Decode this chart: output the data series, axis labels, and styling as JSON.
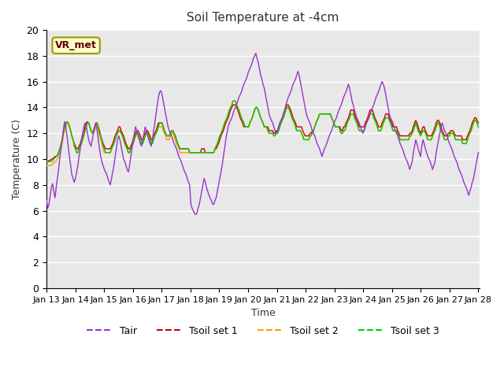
{
  "title": "Soil Temperature at -4cm",
  "xlabel": "Time",
  "ylabel": "Temperature (C)",
  "ylim": [
    0,
    20
  ],
  "xlim": [
    0,
    360
  ],
  "background_color": "#e8e8e8",
  "figure_color": "#ffffff",
  "grid_color": "#ffffff",
  "label_box": "VR_met",
  "legend_labels": [
    "Tair",
    "Tsoil set 1",
    "Tsoil set 2",
    "Tsoil set 3"
  ],
  "line_colors": [
    "#9933cc",
    "#cc0000",
    "#ff9900",
    "#00cc00"
  ],
  "xtick_labels": [
    "Jan 13",
    "Jan 14",
    "Jan 15",
    "Jan 16",
    "Jan 17",
    "Jan 18",
    "Jan 19",
    "Jan 20",
    "Jan 21",
    "Jan 22",
    "Jan 23",
    "Jan 24",
    "Jan 25",
    "Jan 26",
    "Jan 27",
    "Jan 28"
  ],
  "n_points": 360,
  "tair": [
    6.8,
    6.2,
    6.5,
    7.2,
    7.8,
    8.1,
    7.5,
    7.0,
    7.8,
    8.5,
    9.2,
    10.1,
    10.8,
    11.5,
    12.3,
    12.9,
    12.5,
    11.8,
    11.0,
    10.2,
    9.5,
    8.8,
    8.5,
    8.2,
    8.5,
    9.0,
    9.5,
    10.2,
    10.8,
    11.5,
    12.0,
    12.5,
    12.8,
    12.5,
    12.0,
    11.5,
    11.2,
    11.0,
    11.5,
    12.0,
    12.5,
    12.8,
    12.2,
    11.5,
    10.8,
    10.2,
    9.8,
    9.5,
    9.2,
    9.0,
    8.8,
    8.5,
    8.2,
    8.0,
    8.5,
    9.0,
    9.5,
    10.2,
    10.8,
    11.5,
    11.8,
    11.5,
    11.0,
    10.5,
    10.0,
    9.8,
    9.5,
    9.2,
    9.0,
    9.5,
    10.2,
    10.8,
    11.5,
    12.0,
    12.5,
    12.2,
    11.8,
    11.5,
    11.2,
    11.0,
    11.5,
    12.0,
    12.5,
    12.2,
    11.8,
    11.5,
    11.2,
    11.0,
    11.5,
    12.2,
    12.8,
    13.5,
    14.2,
    14.8,
    15.2,
    15.3,
    15.0,
    14.5,
    14.0,
    13.5,
    13.0,
    12.5,
    12.2,
    12.0,
    11.8,
    11.5,
    11.2,
    11.0,
    10.8,
    10.5,
    10.2,
    10.0,
    9.8,
    9.5,
    9.2,
    9.0,
    8.8,
    8.5,
    8.2,
    8.0,
    6.5,
    6.2,
    6.0,
    5.8,
    5.7,
    5.8,
    6.2,
    6.5,
    7.0,
    7.5,
    8.0,
    8.5,
    8.2,
    7.8,
    7.5,
    7.2,
    7.0,
    6.8,
    6.5,
    6.5,
    6.8,
    7.0,
    7.5,
    8.0,
    8.5,
    9.0,
    9.5,
    10.2,
    10.8,
    11.5,
    12.0,
    12.5,
    12.8,
    13.0,
    13.2,
    13.5,
    13.8,
    14.0,
    14.2,
    14.5,
    14.8,
    15.0,
    15.2,
    15.5,
    15.8,
    16.0,
    16.2,
    16.5,
    16.8,
    17.0,
    17.2,
    17.5,
    17.8,
    18.0,
    18.2,
    17.8,
    17.5,
    17.0,
    16.5,
    16.2,
    15.8,
    15.5,
    15.0,
    14.5,
    14.0,
    13.5,
    13.2,
    13.0,
    12.8,
    12.5,
    12.2,
    12.0,
    12.2,
    12.5,
    12.8,
    13.0,
    13.2,
    13.5,
    13.8,
    14.2,
    14.5,
    14.8,
    15.0,
    15.2,
    15.5,
    15.8,
    16.0,
    16.2,
    16.5,
    16.8,
    16.5,
    16.0,
    15.5,
    15.0,
    14.5,
    14.0,
    13.5,
    13.2,
    13.0,
    12.8,
    12.5,
    12.2,
    12.0,
    11.8,
    11.5,
    11.2,
    11.0,
    10.8,
    10.5,
    10.2,
    10.5,
    10.8,
    11.0,
    11.2,
    11.5,
    11.8,
    12.0,
    12.2,
    12.5,
    12.8,
    13.0,
    13.2,
    13.5,
    13.8,
    14.0,
    14.2,
    14.5,
    14.8,
    15.0,
    15.2,
    15.5,
    15.8,
    15.5,
    15.0,
    14.5,
    14.2,
    13.8,
    13.5,
    13.2,
    13.0,
    12.8,
    12.5,
    12.2,
    12.0,
    12.2,
    12.5,
    12.8,
    13.0,
    13.2,
    13.5,
    13.8,
    14.0,
    14.2,
    14.5,
    14.8,
    15.0,
    15.2,
    15.5,
    15.8,
    16.0,
    15.8,
    15.5,
    15.0,
    14.5,
    14.0,
    13.5,
    13.2,
    13.0,
    12.8,
    12.5,
    12.2,
    12.0,
    11.8,
    11.5,
    11.2,
    11.0,
    10.8,
    10.5,
    10.2,
    10.0,
    9.8,
    9.5,
    9.2,
    9.5,
    9.8,
    10.5,
    11.0,
    11.5,
    11.2,
    10.8,
    10.5,
    10.2,
    11.0,
    11.5,
    11.2,
    10.8,
    10.5,
    10.2,
    10.0,
    9.8,
    9.5,
    9.2,
    9.5,
    9.8,
    10.5,
    11.0,
    11.5,
    12.0,
    12.5,
    12.8,
    12.5,
    12.2,
    12.0,
    11.8,
    11.5,
    11.2,
    11.0,
    10.8,
    10.5,
    10.2,
    10.0,
    9.8,
    9.5,
    9.2,
    9.0,
    8.8,
    8.5,
    8.2,
    8.0,
    7.8,
    7.5,
    7.2,
    7.5,
    7.8,
    8.2,
    8.5,
    9.0,
    9.5,
    10.0,
    10.5
  ],
  "tsoil1": [
    9.8,
    9.8,
    9.9,
    9.9,
    10.0,
    10.0,
    10.1,
    10.2,
    10.2,
    10.3,
    10.5,
    10.8,
    11.0,
    11.5,
    12.0,
    12.5,
    12.8,
    12.9,
    12.8,
    12.5,
    12.2,
    11.8,
    11.5,
    11.2,
    11.0,
    10.8,
    10.8,
    11.0,
    11.2,
    11.5,
    11.8,
    12.0,
    12.5,
    12.8,
    12.9,
    12.8,
    12.5,
    12.2,
    12.0,
    12.2,
    12.5,
    12.8,
    12.8,
    12.5,
    12.2,
    11.8,
    11.5,
    11.2,
    11.0,
    10.8,
    10.8,
    10.8,
    10.8,
    10.8,
    11.0,
    11.2,
    11.5,
    11.8,
    12.0,
    12.2,
    12.5,
    12.5,
    12.2,
    12.0,
    11.8,
    11.5,
    11.2,
    11.0,
    10.8,
    10.8,
    11.0,
    11.2,
    11.5,
    11.8,
    12.0,
    12.2,
    12.2,
    12.0,
    11.8,
    11.5,
    11.5,
    11.8,
    12.0,
    12.2,
    12.2,
    12.0,
    11.8,
    11.5,
    11.5,
    11.8,
    12.0,
    12.2,
    12.5,
    12.8,
    12.8,
    12.8,
    12.8,
    12.5,
    12.2,
    12.0,
    11.8,
    11.8,
    11.8,
    12.0,
    12.2,
    12.2,
    12.0,
    11.8,
    11.5,
    11.2,
    11.0,
    10.8,
    10.8,
    10.8,
    10.8,
    10.8,
    10.8,
    10.8,
    10.8,
    10.5,
    10.5,
    10.5,
    10.5,
    10.5,
    10.5,
    10.5,
    10.5,
    10.5,
    10.5,
    10.8,
    10.8,
    10.8,
    10.5,
    10.5,
    10.5,
    10.5,
    10.5,
    10.5,
    10.5,
    10.5,
    10.8,
    10.8,
    11.0,
    11.2,
    11.5,
    11.8,
    12.0,
    12.2,
    12.5,
    12.8,
    13.0,
    13.2,
    13.5,
    13.8,
    14.0,
    14.2,
    14.2,
    14.2,
    14.0,
    13.8,
    13.5,
    13.2,
    13.0,
    12.8,
    12.5,
    12.5,
    12.5,
    12.5,
    12.5,
    12.8,
    13.0,
    13.2,
    13.5,
    13.8,
    14.0,
    14.0,
    13.8,
    13.5,
    13.2,
    13.0,
    12.8,
    12.5,
    12.5,
    12.5,
    12.5,
    12.2,
    12.2,
    12.2,
    12.2,
    12.0,
    12.0,
    12.2,
    12.2,
    12.5,
    12.8,
    13.0,
    13.2,
    13.5,
    13.8,
    14.0,
    14.2,
    14.2,
    14.0,
    13.8,
    13.5,
    13.2,
    13.0,
    12.8,
    12.5,
    12.5,
    12.5,
    12.5,
    12.5,
    12.2,
    12.0,
    11.8,
    11.8,
    11.8,
    11.8,
    12.0,
    12.0,
    12.2,
    12.2,
    12.5,
    12.8,
    13.0,
    13.2,
    13.5,
    13.5,
    13.5,
    13.5,
    13.5,
    13.5,
    13.5,
    13.5,
    13.5,
    13.5,
    13.2,
    13.0,
    12.8,
    12.5,
    12.5,
    12.5,
    12.5,
    12.5,
    12.2,
    12.2,
    12.5,
    12.5,
    12.8,
    13.0,
    13.2,
    13.5,
    13.8,
    13.8,
    13.8,
    13.5,
    13.2,
    13.0,
    12.8,
    12.5,
    12.5,
    12.5,
    12.5,
    12.5,
    12.8,
    13.0,
    13.2,
    13.5,
    13.8,
    13.8,
    13.8,
    13.5,
    13.2,
    13.0,
    12.8,
    12.5,
    12.5,
    12.5,
    12.8,
    13.0,
    13.2,
    13.5,
    13.5,
    13.5,
    13.2,
    13.0,
    12.8,
    12.5,
    12.5,
    12.5,
    12.5,
    12.2,
    12.0,
    11.8,
    11.8,
    11.8,
    11.8,
    11.8,
    11.8,
    11.8,
    11.8,
    12.0,
    12.0,
    12.2,
    12.5,
    12.8,
    13.0,
    12.8,
    12.5,
    12.2,
    12.0,
    12.2,
    12.5,
    12.5,
    12.2,
    12.0,
    11.8,
    11.8,
    11.8,
    11.8,
    12.0,
    12.2,
    12.5,
    12.8,
    13.0,
    13.0,
    12.8,
    12.5,
    12.2,
    12.0,
    11.8,
    11.8,
    11.8,
    12.0,
    12.0,
    12.2,
    12.2,
    12.2,
    12.0,
    11.8,
    11.8,
    11.8,
    11.8,
    11.8,
    11.8,
    11.5,
    11.5,
    11.5,
    11.5,
    11.8,
    12.0,
    12.2,
    12.5,
    12.8,
    13.0,
    13.2,
    13.2,
    13.0,
    12.8
  ],
  "tsoil2": [
    9.5,
    9.5,
    9.5,
    9.5,
    9.5,
    9.6,
    9.7,
    9.8,
    9.9,
    10.0,
    10.2,
    10.5,
    10.8,
    11.2,
    11.8,
    12.2,
    12.5,
    12.8,
    12.8,
    12.5,
    12.2,
    11.8,
    11.5,
    11.0,
    10.8,
    10.5,
    10.5,
    10.8,
    11.0,
    11.2,
    11.5,
    11.8,
    12.2,
    12.5,
    12.8,
    12.8,
    12.5,
    12.2,
    12.0,
    12.0,
    12.2,
    12.5,
    12.5,
    12.2,
    11.8,
    11.5,
    11.2,
    10.8,
    10.5,
    10.5,
    10.5,
    10.5,
    10.5,
    10.5,
    10.8,
    11.0,
    11.2,
    11.5,
    11.8,
    12.0,
    12.2,
    12.2,
    12.0,
    11.8,
    11.5,
    11.2,
    11.0,
    10.8,
    10.5,
    10.5,
    10.8,
    11.0,
    11.2,
    11.5,
    11.8,
    12.0,
    12.0,
    11.8,
    11.5,
    11.2,
    11.2,
    11.5,
    11.8,
    12.0,
    12.0,
    11.8,
    11.5,
    11.2,
    11.2,
    11.5,
    11.8,
    12.0,
    12.2,
    12.5,
    12.5,
    12.5,
    12.5,
    12.2,
    12.0,
    11.8,
    11.5,
    11.5,
    11.5,
    11.8,
    12.0,
    12.0,
    11.8,
    11.5,
    11.2,
    11.0,
    10.8,
    10.5,
    10.5,
    10.5,
    10.5,
    10.5,
    10.5,
    10.5,
    10.5,
    10.5,
    10.5,
    10.5,
    10.5,
    10.5,
    10.5,
    10.5,
    10.5,
    10.5,
    10.5,
    10.5,
    10.5,
    10.5,
    10.5,
    10.5,
    10.5,
    10.5,
    10.5,
    10.5,
    10.5,
    10.5,
    10.8,
    11.0,
    11.2,
    11.5,
    11.8,
    12.0,
    12.2,
    12.5,
    12.8,
    13.0,
    13.2,
    13.5,
    13.8,
    14.0,
    14.2,
    14.5,
    14.5,
    14.5,
    14.2,
    14.0,
    13.8,
    13.5,
    13.2,
    13.0,
    12.8,
    12.5,
    12.5,
    12.5,
    12.5,
    12.8,
    13.0,
    13.2,
    13.5,
    13.8,
    14.0,
    14.0,
    13.8,
    13.5,
    13.2,
    13.0,
    12.8,
    12.5,
    12.5,
    12.5,
    12.2,
    12.0,
    12.0,
    12.0,
    12.0,
    11.8,
    11.8,
    12.0,
    12.0,
    12.2,
    12.5,
    12.8,
    13.0,
    13.2,
    13.5,
    13.8,
    14.0,
    14.0,
    13.8,
    13.5,
    13.2,
    13.0,
    12.8,
    12.5,
    12.2,
    12.2,
    12.2,
    12.2,
    12.0,
    11.8,
    11.5,
    11.5,
    11.5,
    11.5,
    11.5,
    11.8,
    11.8,
    12.0,
    12.2,
    12.5,
    12.8,
    13.0,
    13.2,
    13.5,
    13.5,
    13.5,
    13.5,
    13.5,
    13.5,
    13.5,
    13.5,
    13.5,
    13.5,
    13.2,
    13.0,
    12.8,
    12.5,
    12.5,
    12.5,
    12.5,
    12.2,
    12.0,
    12.0,
    12.2,
    12.2,
    12.5,
    12.8,
    13.0,
    13.2,
    13.5,
    13.5,
    13.5,
    13.2,
    13.0,
    12.8,
    12.5,
    12.2,
    12.2,
    12.2,
    12.2,
    12.2,
    12.5,
    12.8,
    13.0,
    13.2,
    13.5,
    13.5,
    13.5,
    13.2,
    13.0,
    12.8,
    12.5,
    12.2,
    12.2,
    12.2,
    12.5,
    12.8,
    13.0,
    13.2,
    13.2,
    13.2,
    13.0,
    12.8,
    12.5,
    12.2,
    12.2,
    12.2,
    12.2,
    12.0,
    11.8,
    11.5,
    11.5,
    11.5,
    11.5,
    11.5,
    11.5,
    11.5,
    11.5,
    11.8,
    11.8,
    12.0,
    12.2,
    12.5,
    12.8,
    12.5,
    12.2,
    12.0,
    11.8,
    12.0,
    12.2,
    12.2,
    12.0,
    11.8,
    11.5,
    11.5,
    11.5,
    11.5,
    11.8,
    12.0,
    12.2,
    12.5,
    12.8,
    12.8,
    12.5,
    12.2,
    12.0,
    11.8,
    11.5,
    11.5,
    11.5,
    11.8,
    11.8,
    12.0,
    12.0,
    12.0,
    11.8,
    11.5,
    11.5,
    11.5,
    11.5,
    11.5,
    11.5,
    11.2,
    11.2,
    11.2,
    11.2,
    11.5,
    11.8,
    12.0,
    12.2,
    12.5,
    12.8,
    13.0,
    13.0,
    12.8,
    12.5
  ],
  "tsoil3": [
    9.8,
    9.8,
    9.8,
    9.8,
    9.8,
    9.9,
    10.0,
    10.1,
    10.2,
    10.3,
    10.5,
    10.8,
    11.2,
    11.5,
    12.0,
    12.5,
    12.8,
    12.9,
    12.8,
    12.5,
    12.2,
    11.8,
    11.5,
    11.0,
    10.8,
    10.5,
    10.5,
    10.8,
    11.0,
    11.2,
    11.5,
    11.8,
    12.2,
    12.5,
    12.8,
    12.8,
    12.5,
    12.2,
    12.0,
    12.2,
    12.5,
    12.8,
    12.8,
    12.5,
    12.0,
    11.8,
    11.5,
    11.0,
    10.8,
    10.5,
    10.5,
    10.5,
    10.5,
    10.5,
    10.8,
    11.0,
    11.2,
    11.5,
    11.8,
    12.0,
    12.2,
    12.2,
    12.0,
    11.8,
    11.5,
    11.2,
    11.0,
    10.8,
    10.5,
    10.5,
    10.8,
    11.0,
    11.2,
    11.5,
    11.8,
    12.0,
    12.0,
    11.8,
    11.5,
    11.2,
    11.2,
    11.5,
    11.8,
    12.0,
    12.0,
    11.8,
    11.5,
    11.2,
    11.2,
    11.5,
    11.8,
    12.0,
    12.2,
    12.5,
    12.8,
    12.8,
    12.8,
    12.5,
    12.2,
    12.0,
    11.8,
    11.8,
    11.8,
    12.0,
    12.2,
    12.2,
    12.0,
    11.8,
    11.5,
    11.2,
    11.0,
    10.8,
    10.8,
    10.8,
    10.8,
    10.8,
    10.8,
    10.8,
    10.8,
    10.5,
    10.5,
    10.5,
    10.5,
    10.5,
    10.5,
    10.5,
    10.5,
    10.5,
    10.5,
    10.5,
    10.5,
    10.5,
    10.5,
    10.5,
    10.5,
    10.5,
    10.5,
    10.5,
    10.5,
    10.5,
    10.8,
    11.0,
    11.2,
    11.5,
    11.8,
    12.0,
    12.2,
    12.5,
    12.8,
    13.0,
    13.2,
    13.5,
    13.8,
    14.0,
    14.2,
    14.5,
    14.5,
    14.5,
    14.2,
    14.0,
    13.8,
    13.5,
    13.2,
    13.0,
    12.8,
    12.5,
    12.5,
    12.5,
    12.5,
    12.8,
    13.0,
    13.2,
    13.5,
    13.8,
    14.0,
    14.0,
    13.8,
    13.5,
    13.2,
    13.0,
    12.8,
    12.5,
    12.5,
    12.5,
    12.2,
    12.0,
    12.0,
    12.0,
    12.0,
    11.8,
    11.8,
    12.0,
    12.0,
    12.2,
    12.5,
    12.8,
    13.0,
    13.2,
    13.5,
    13.8,
    14.0,
    14.0,
    13.8,
    13.5,
    13.2,
    13.0,
    12.8,
    12.5,
    12.2,
    12.2,
    12.2,
    12.2,
    12.0,
    11.8,
    11.5,
    11.5,
    11.5,
    11.5,
    11.5,
    11.8,
    11.8,
    12.0,
    12.2,
    12.5,
    12.8,
    13.0,
    13.2,
    13.5,
    13.5,
    13.5,
    13.5,
    13.5,
    13.5,
    13.5,
    13.5,
    13.5,
    13.5,
    13.2,
    13.0,
    12.8,
    12.5,
    12.5,
    12.5,
    12.5,
    12.2,
    12.0,
    12.0,
    12.2,
    12.2,
    12.5,
    12.8,
    13.0,
    13.2,
    13.5,
    13.5,
    13.5,
    13.2,
    13.0,
    12.8,
    12.5,
    12.2,
    12.2,
    12.2,
    12.2,
    12.2,
    12.5,
    12.8,
    13.0,
    13.2,
    13.5,
    13.5,
    13.5,
    13.2,
    13.0,
    12.8,
    12.5,
    12.2,
    12.2,
    12.2,
    12.5,
    12.8,
    13.0,
    13.2,
    13.2,
    13.2,
    13.0,
    12.8,
    12.5,
    12.2,
    12.2,
    12.2,
    12.2,
    12.0,
    11.8,
    11.5,
    11.5,
    11.5,
    11.5,
    11.5,
    11.5,
    11.5,
    11.5,
    11.8,
    11.8,
    12.0,
    12.2,
    12.5,
    12.8,
    12.5,
    12.2,
    12.0,
    11.8,
    12.0,
    12.2,
    12.2,
    12.0,
    11.8,
    11.5,
    11.5,
    11.5,
    11.5,
    11.8,
    12.0,
    12.2,
    12.5,
    12.8,
    12.8,
    12.5,
    12.2,
    12.0,
    11.8,
    11.5,
    11.5,
    11.5,
    11.8,
    11.8,
    12.0,
    12.0,
    12.0,
    11.8,
    11.5,
    11.5,
    11.5,
    11.5,
    11.5,
    11.5,
    11.2,
    11.2,
    11.2,
    11.2,
    11.5,
    11.8,
    12.0,
    12.2,
    12.5,
    12.8,
    13.0,
    13.0,
    12.8,
    12.5
  ]
}
